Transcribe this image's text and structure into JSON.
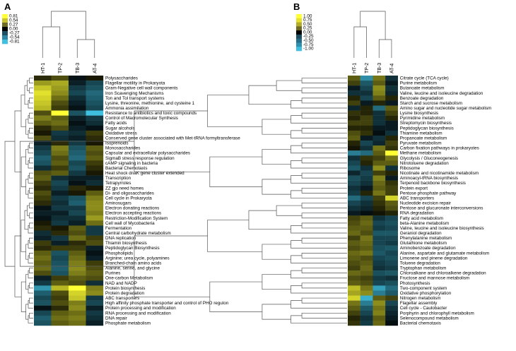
{
  "panels": [
    {
      "label": "A",
      "legend": {
        "ticks": [
          "0.81",
          "0.54",
          "0.27",
          "0.00",
          "-0.27",
          "-0.54",
          "-0.81"
        ],
        "colors": [
          "#ffff33",
          "#c8c230",
          "#6e6a24",
          "#000000",
          "#1f4f63",
          "#2f86a4",
          "#3fc0e0"
        ]
      },
      "columns": [
        "HT-1",
        "TP-2",
        "TB-3",
        "AT-4"
      ]
    },
    {
      "label": "B",
      "legend": {
        "ticks": [
          "1.00",
          "0.75",
          "0.50",
          "0.25",
          "0.00",
          "-0.25",
          "-0.50",
          "-0.75",
          "-1.00"
        ],
        "colors": [
          "#ffff33",
          "#e6e12e",
          "#b3ad2a",
          "#6e6a24",
          "#000000",
          "#1f4f63",
          "#266d87",
          "#2f90b0",
          "#3fc0e0"
        ]
      },
      "columns": [
        "HT-1",
        "TP-2",
        "TB-3",
        "AT-4"
      ]
    }
  ],
  "chart_data": [
    {
      "type": "heatmap",
      "panel": "A",
      "columns": [
        "HT-1",
        "TP-2",
        "TB-3",
        "AT-4"
      ],
      "colorbar_range": [
        -0.81,
        0.81
      ],
      "rows": [
        "Polysaccharides",
        "Flagellar motility in Prokaryota",
        "Gram-Negative cell wall components",
        "Iron Scavenging Mechanisms",
        "Ton and Tol transport systems",
        "Lysine, threonine, methionine, and cysteine 1",
        "Ammonia assimilation",
        "Resistance to antibiotics and toxic compounds",
        "Control of Macromolecular Synthesis",
        "Fatty acids",
        "Sugar alcohols",
        "Oxidative stress",
        "Conserved gene cluster associated with Met-tRNA formyltransferase",
        "Isoprenoids",
        "Monosaccharides",
        "Capsular and extracellular polysaccharides",
        "SigmaB stress response regulation",
        "cAMP signaling in bacteria",
        "Bacterial Chemotaxis",
        "Heat shock dnaK gene cluster extended",
        "Transcription",
        "Tetrapyrroles",
        "ZZ gjo need homes",
        "Di- and oligosaccharides",
        "Cell cycle in Prokaryota",
        "Aminosugars",
        "Electron donating reactions",
        "Electron accepting reactions",
        "Restriction-Modification System",
        "Cell wall of Mycobacteria",
        "Fermentation",
        "Central carbohydrate metabolism",
        "DNA replication",
        "Thiamin biosynthesis",
        "Peptidoglycan Biosynthesis",
        "Phospholipids",
        "Arginine; urea cycle, polyamines",
        "Branched-chain amino acids",
        "Alanine, serine, and glycine",
        "Purines",
        "One-carbon Metabolism",
        "NAD and NADP",
        "Protein biosynthesis",
        "Protein degradation",
        "ABC transporters",
        "High affinity phosphate transporter and control of PHO regulon",
        "Protein processing and modification",
        "RNA processing and modification",
        "DNA repair",
        "Phosphate metabolism"
      ],
      "values": [
        [
          0.1,
          0.2,
          -0.05,
          0.05
        ],
        [
          0.45,
          0.5,
          -0.1,
          -0.25
        ],
        [
          0.6,
          0.45,
          -0.2,
          -0.3
        ],
        [
          0.7,
          0.4,
          -0.25,
          -0.4
        ],
        [
          0.65,
          0.3,
          -0.15,
          -0.35
        ],
        [
          0.6,
          0.2,
          -0.1,
          -0.3
        ],
        [
          0.55,
          0.15,
          -0.05,
          -0.25
        ],
        [
          0.2,
          0.81,
          -0.3,
          -0.81
        ],
        [
          0.35,
          0.25,
          -0.1,
          -0.2
        ],
        [
          0.25,
          0.3,
          -0.05,
          -0.15
        ],
        [
          0.1,
          0.2,
          -0.1,
          -0.05
        ],
        [
          0.05,
          -0.2,
          -0.15,
          0.15
        ],
        [
          0.2,
          -0.15,
          -0.1,
          0.1
        ],
        [
          -0.1,
          0.1,
          -0.2,
          0.05
        ],
        [
          -0.2,
          0.35,
          -0.3,
          0.25
        ],
        [
          -0.25,
          0.3,
          -0.35,
          0.2
        ],
        [
          -0.35,
          0.2,
          -0.4,
          0.25
        ],
        [
          -0.3,
          0.25,
          -0.25,
          0.15
        ],
        [
          -0.15,
          0.15,
          -0.3,
          0.1
        ],
        [
          0.2,
          0.25,
          -0.2,
          0.05
        ],
        [
          0.25,
          -0.15,
          -0.1,
          -0.1
        ],
        [
          0.15,
          -0.25,
          -0.05,
          -0.15
        ],
        [
          0.1,
          -0.2,
          0.1,
          0.05
        ],
        [
          0.2,
          -0.1,
          0.05,
          0.25
        ],
        [
          0.15,
          -0.2,
          -0.3,
          0.35
        ],
        [
          0.1,
          -0.15,
          -0.35,
          0.4
        ],
        [
          -0.05,
          -0.2,
          -0.2,
          0.4
        ],
        [
          -0.1,
          -0.1,
          -0.25,
          0.35
        ],
        [
          -0.05,
          -0.15,
          -0.15,
          0.45
        ],
        [
          0.05,
          -0.2,
          -0.1,
          0.3
        ],
        [
          0.1,
          0.05,
          0.25,
          -0.2
        ],
        [
          -0.15,
          0.1,
          0.2,
          -0.2
        ],
        [
          -0.1,
          -0.2,
          0.3,
          0.15
        ],
        [
          0.15,
          -0.1,
          0.1,
          0.2
        ],
        [
          0.1,
          0.15,
          0.15,
          -0.1
        ],
        [
          0.25,
          -0.3,
          0.25,
          -0.05
        ],
        [
          0.3,
          -0.25,
          0.3,
          -0.1
        ],
        [
          0.25,
          -0.3,
          0.35,
          0.15
        ],
        [
          0.3,
          -0.35,
          0.4,
          0.2
        ],
        [
          0.2,
          -0.3,
          0.35,
          0.25
        ],
        [
          -0.1,
          0.15,
          0.25,
          0.2
        ],
        [
          -0.2,
          0.25,
          0.2,
          -0.15
        ],
        [
          -0.6,
          0.55,
          0.81,
          0.35
        ],
        [
          -0.35,
          0.2,
          0.65,
          0.4
        ],
        [
          -0.25,
          0.15,
          0.6,
          -0.2
        ],
        [
          -0.3,
          0.2,
          0.35,
          -0.25
        ],
        [
          -0.05,
          0.1,
          0.4,
          -0.1
        ],
        [
          -0.25,
          0.25,
          0.3,
          -0.2
        ],
        [
          -0.35,
          0.3,
          0.35,
          -0.15
        ],
        [
          -0.3,
          0.25,
          0.3,
          -0.1
        ]
      ]
    },
    {
      "type": "heatmap",
      "panel": "B",
      "columns": [
        "HT-1",
        "TP-2",
        "TB-3",
        "AT-4"
      ],
      "colorbar_range": [
        -1.0,
        1.0
      ],
      "rows": [
        "Citrate cycle (TCA cycle)",
        "Purine metabolism",
        "Butanoate metabolism",
        "Valine, leucine and isoleucine degradation",
        "Benzoate degradation",
        "Starch and sucrose metabolism",
        "Amino sugar and nucleotide sugar metabolism",
        "Lysine biosynthesis",
        "Pyrimidine metabolism",
        "Streptomycin biosynthesis",
        "Peptidoglycan biosynthesis",
        "Thiamine metabolism",
        "Propanoate metabolism",
        "Pyruvate metabolism",
        "Carbon fixation pathways in prokaryotes",
        "Methane metabolism",
        "Glycolysis / Gluconeogenesis",
        "Nitrotoluene degradation",
        "Ribosome",
        "Nicotinate and nicotinamide metabolism",
        "Aminoacyl-tRNA biosynthesis",
        "Terpenoid backbone biosynthesis",
        "Protein export",
        "Pentose phosphate pathway",
        "ABC transporters",
        "Nucleotide excision repair",
        "Pentose and glucuronate interconversions",
        "RNA degradation",
        "Fatty acid metabolism",
        "beta-Alanine metabolism",
        "Valine, leucine and isoleucine biosynthesis",
        "Geraniol degradation",
        "Phenylalanine metabolism",
        "Glutathione metabolism",
        "Aminobenzoate degradation",
        "Alanine, aspartate and glutamate metabolism",
        "Limonene and pinene degradation",
        "Toluene degradation",
        "Tryptophan metabolism",
        "Chloroalkane and chloroalkene degradation",
        "Fructose and mannose metabolism",
        "Photosynthesis",
        "Two-component system",
        "Oxidative phosphorylation",
        "Nitrogen metabolism",
        "Flagellar assembly",
        "Cell cycle - Caulobacter",
        "Porphyrin and chlorophyll metabolism",
        "Selenocompound metabolism",
        "Bacterial chemotaxis"
      ],
      "values": [
        [
          0.3,
          -0.7,
          0.4,
          -0.2
        ],
        [
          0.2,
          -0.4,
          0.3,
          -0.1
        ],
        [
          -0.1,
          -0.3,
          0.5,
          -0.2
        ],
        [
          -0.2,
          -0.2,
          0.45,
          -0.15
        ],
        [
          0.1,
          -0.3,
          0.3,
          0.1
        ],
        [
          0.2,
          -0.1,
          0.1,
          -0.1
        ],
        [
          -0.15,
          0.1,
          -0.5,
          0.3
        ],
        [
          0.15,
          0.1,
          -0.2,
          0.2
        ],
        [
          0.1,
          0.2,
          -0.2,
          0.1
        ],
        [
          0.2,
          0.2,
          -0.2,
          -0.1
        ],
        [
          0.1,
          0.1,
          -0.1,
          -0.1
        ],
        [
          0.25,
          0.15,
          -0.05,
          -0.2
        ],
        [
          0.3,
          -0.1,
          -0.2,
          0.1
        ],
        [
          0.1,
          -0.3,
          -0.15,
          0.2
        ],
        [
          0.05,
          -0.2,
          0.4,
          0.15
        ],
        [
          -0.6,
          -0.5,
          0.3,
          1.0
        ],
        [
          -0.2,
          0.15,
          0.2,
          0.4
        ],
        [
          -0.3,
          0.1,
          0.3,
          0.3
        ],
        [
          -0.4,
          -0.2,
          0.5,
          -0.2
        ],
        [
          -0.15,
          -0.3,
          0.2,
          0.1
        ],
        [
          -0.35,
          -0.25,
          0.45,
          -0.1
        ],
        [
          -0.3,
          -0.2,
          0.35,
          0.15
        ],
        [
          -0.2,
          -0.1,
          0.3,
          0.2
        ],
        [
          -0.25,
          0.1,
          0.4,
          0.2
        ],
        [
          -0.5,
          -0.3,
          0.2,
          0.8
        ],
        [
          -0.3,
          -0.2,
          0.15,
          0.3
        ],
        [
          -0.2,
          -0.15,
          0.1,
          0.25
        ],
        [
          -0.1,
          -0.05,
          0.05,
          0.1
        ],
        [
          0.2,
          0.3,
          -0.2,
          -0.3
        ],
        [
          0.25,
          0.35,
          -0.3,
          -0.35
        ],
        [
          0.3,
          0.3,
          -0.25,
          -0.3
        ],
        [
          0.35,
          0.25,
          -0.4,
          -0.4
        ],
        [
          0.2,
          0.4,
          -0.3,
          -0.3
        ],
        [
          0.3,
          0.35,
          -0.3,
          -0.25
        ],
        [
          0.25,
          0.3,
          -0.35,
          -0.4
        ],
        [
          0.35,
          0.4,
          -0.4,
          -0.3
        ],
        [
          0.3,
          0.25,
          -0.3,
          -0.35
        ],
        [
          0.25,
          0.3,
          -0.25,
          -0.3
        ],
        [
          0.2,
          0.35,
          -0.2,
          -0.25
        ],
        [
          0.35,
          0.3,
          -0.35,
          -0.4
        ],
        [
          0.25,
          0.2,
          -0.25,
          -0.2
        ],
        [
          0.3,
          0.25,
          -0.3,
          -0.35
        ],
        [
          0.7,
          0.4,
          -0.8,
          -0.5
        ],
        [
          0.6,
          0.5,
          -0.6,
          -0.4
        ],
        [
          0.8,
          -0.9,
          0.3,
          0.2
        ],
        [
          0.4,
          -0.6,
          0.5,
          -0.3
        ],
        [
          0.3,
          -0.4,
          0.4,
          -0.2
        ],
        [
          0.2,
          -0.3,
          0.45,
          -0.15
        ],
        [
          0.1,
          -0.2,
          0.3,
          -0.1
        ],
        [
          0.15,
          -0.25,
          0.35,
          -0.05
        ]
      ]
    }
  ]
}
